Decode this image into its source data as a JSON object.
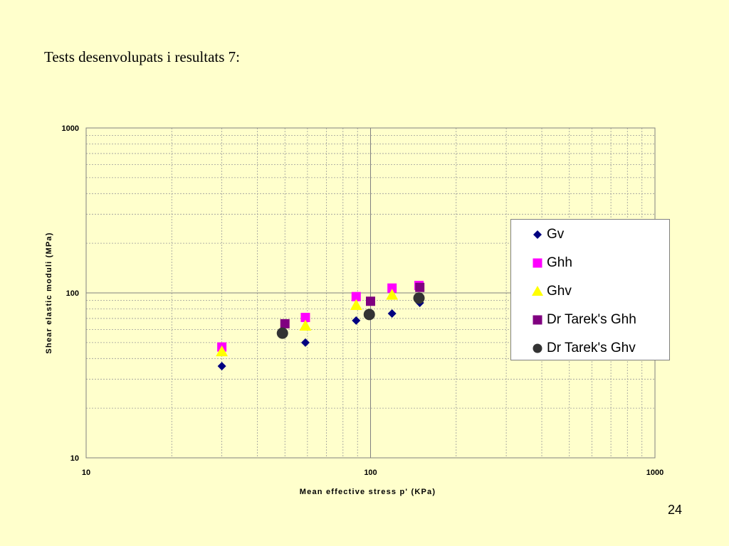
{
  "slide": {
    "title": "Tests desenvolupats i resultats 7:",
    "page_number": "24"
  },
  "chart_data": {
    "type": "scatter",
    "title": "",
    "xlabel": "Mean effective stress p' (KPa)",
    "ylabel": "Shear elastic moduli (MPa)",
    "xscale": "log",
    "yscale": "log",
    "xlim": [
      10,
      1000
    ],
    "ylim": [
      10,
      1000
    ],
    "x_ticks": [
      "10",
      "100",
      "1000"
    ],
    "y_ticks": [
      "10",
      "100",
      "1000"
    ],
    "grid": true,
    "legend_position": "right",
    "series": [
      {
        "name": "Gv",
        "marker": "diamond",
        "color": "#000080",
        "points": [
          {
            "x": 30,
            "y": 36
          },
          {
            "x": 59,
            "y": 50
          },
          {
            "x": 89,
            "y": 68
          },
          {
            "x": 119,
            "y": 75
          },
          {
            "x": 149,
            "y": 87
          }
        ]
      },
      {
        "name": "Ghh",
        "marker": "square",
        "color": "#ff00ff",
        "points": [
          {
            "x": 30,
            "y": 47
          },
          {
            "x": 59,
            "y": 71
          },
          {
            "x": 89,
            "y": 95
          },
          {
            "x": 119,
            "y": 107
          },
          {
            "x": 148,
            "y": 111
          }
        ]
      },
      {
        "name": "Ghv",
        "marker": "triangle",
        "color": "#ffff00",
        "points": [
          {
            "x": 30,
            "y": 44
          },
          {
            "x": 59,
            "y": 63
          },
          {
            "x": 89,
            "y": 84
          },
          {
            "x": 119,
            "y": 97
          }
        ]
      },
      {
        "name": "Dr Tarek's Ghh",
        "marker": "square",
        "color": "#800080",
        "points": [
          {
            "x": 50,
            "y": 65
          },
          {
            "x": 100,
            "y": 89
          },
          {
            "x": 149,
            "y": 108
          }
        ]
      },
      {
        "name": "Dr Tarek's Ghv",
        "marker": "circle",
        "color": "#333333",
        "points": [
          {
            "x": 49,
            "y": 57
          },
          {
            "x": 99,
            "y": 74
          },
          {
            "x": 148,
            "y": 93
          }
        ]
      }
    ]
  }
}
